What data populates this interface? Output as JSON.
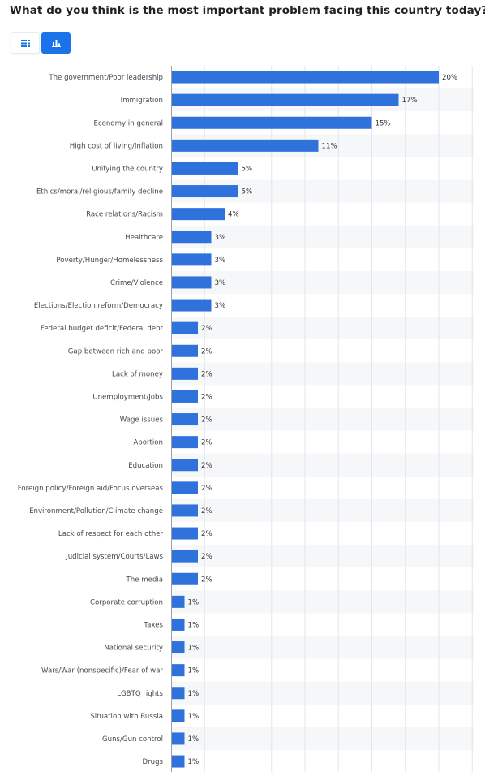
{
  "header": {
    "title": "What do you think is the most important problem facing this country today?"
  },
  "view_toggle": {
    "options": [
      {
        "icon": "table-grid-icon",
        "active": false
      },
      {
        "icon": "bar-chart-icon",
        "active": true
      }
    ],
    "active_color": "#1a73e8"
  },
  "chart_data": {
    "type": "bar",
    "orientation": "horizontal",
    "title": "",
    "xlabel": "",
    "ylabel": "",
    "value_suffix": "%",
    "xlim": [
      0,
      20
    ],
    "grid": true,
    "bar_color": "#2f72dc",
    "categories": [
      "The government/Poor leadership",
      "Immigration",
      "Economy in general",
      "High cost of living/Inflation",
      "Unifying the country",
      "Ethics/moral/religious/family decline",
      "Race relations/Racism",
      "Healthcare",
      "Poverty/Hunger/Homelessness",
      "Crime/Violence",
      "Elections/Election reform/Democracy",
      "Federal budget deficit/Federal debt",
      "Gap between rich and poor",
      "Lack of money",
      "Unemployment/Jobs",
      "Wage issues",
      "Abortion",
      "Education",
      "Foreign policy/Foreign aid/Focus overseas",
      "Environment/Pollution/Climate change",
      "Lack of respect for each other",
      "Judicial system/Courts/Laws",
      "The media",
      "Corporate corruption",
      "Taxes",
      "National security",
      "Wars/War (nonspecific)/Fear of war",
      "LGBTQ rights",
      "Situation with Russia",
      "Guns/Gun control",
      "Drugs"
    ],
    "values": [
      20,
      17,
      15,
      11,
      5,
      5,
      4,
      3,
      3,
      3,
      3,
      2,
      2,
      2,
      2,
      2,
      2,
      2,
      2,
      2,
      2,
      2,
      2,
      1,
      1,
      1,
      1,
      1,
      1,
      1,
      1
    ],
    "value_labels": [
      "20%",
      "17%",
      "15%",
      "11%",
      "5%",
      "5%",
      "4%",
      "3%",
      "3%",
      "3%",
      "3%",
      "2%",
      "2%",
      "2%",
      "2%",
      "2%",
      "2%",
      "2%",
      "2%",
      "2%",
      "2%",
      "2%",
      "2%",
      "1%",
      "1%",
      "1%",
      "1%",
      "1%",
      "1%",
      "1%",
      "1%"
    ]
  }
}
